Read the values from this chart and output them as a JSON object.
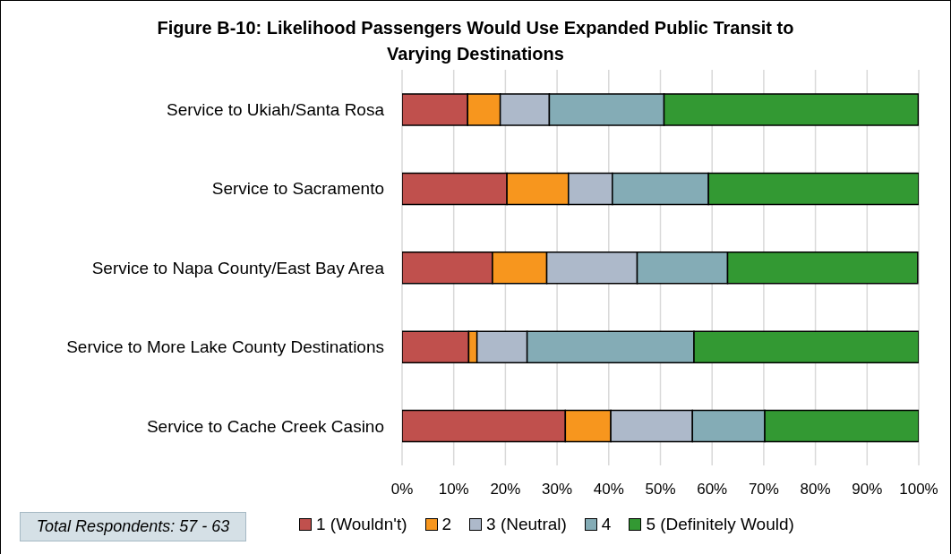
{
  "chart_data": {
    "type": "bar",
    "title": "Figure B-10: Likelihood Passengers Would Use Expanded Public Transit to Varying Destinations",
    "categories": [
      "Service to Ukiah/Santa Rosa",
      "Service to Sacramento",
      "Service to Napa County/East Bay Area",
      "Service to More Lake County Destinations",
      "Service to Cache Creek Casino"
    ],
    "series": [
      {
        "name": "1 (Wouldn't)",
        "color": "#c0504d",
        "values": [
          12.7,
          20.3,
          17.5,
          12.9,
          31.6
        ]
      },
      {
        "name": "2",
        "color": "#f7961e",
        "values": [
          6.3,
          11.9,
          10.5,
          1.6,
          8.8
        ]
      },
      {
        "name": "3 (Neutral)",
        "color": "#adb9ca",
        "values": [
          9.5,
          8.5,
          17.5,
          9.7,
          15.8
        ]
      },
      {
        "name": "4",
        "color": "#84acb6",
        "values": [
          22.2,
          18.6,
          17.5,
          32.3,
          14.0
        ]
      },
      {
        "name": "5 (Definitely Would)",
        "color": "#339933",
        "values": [
          49.2,
          40.7,
          36.8,
          43.5,
          29.8
        ]
      }
    ],
    "stacked": true,
    "orientation": "horizontal",
    "xlim": [
      0,
      100
    ],
    "xticks": [
      {
        "value": 0,
        "label": "0%"
      },
      {
        "value": 10,
        "label": "10%"
      },
      {
        "value": 20,
        "label": "20%"
      },
      {
        "value": 30,
        "label": "30%"
      },
      {
        "value": 40,
        "label": "40%"
      },
      {
        "value": 50,
        "label": "50%"
      },
      {
        "value": 60,
        "label": "60%"
      },
      {
        "value": 70,
        "label": "70%"
      },
      {
        "value": 80,
        "label": "80%"
      },
      {
        "value": 90,
        "label": "90%"
      },
      {
        "value": 100,
        "label": "100%"
      }
    ],
    "grid": "x",
    "legend": "bottom",
    "annotations": [
      "Total Respondents: 57 - 63"
    ]
  }
}
